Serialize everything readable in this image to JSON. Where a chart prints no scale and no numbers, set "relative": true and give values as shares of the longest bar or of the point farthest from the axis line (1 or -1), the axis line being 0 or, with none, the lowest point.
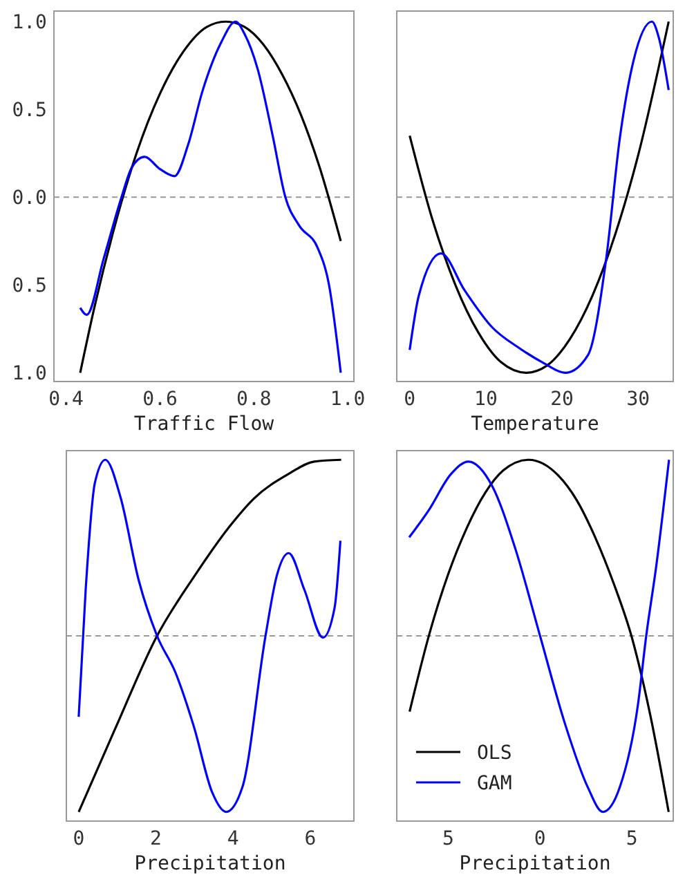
{
  "chart_data": [
    {
      "type": "line",
      "xlabel": "Traffic Flow",
      "xlim": [
        0.374,
        1.013
      ],
      "xticks": [
        {
          "value": 0.4,
          "label": "0.4"
        },
        {
          "value": 0.6,
          "label": "0.6"
        },
        {
          "value": 0.8,
          "label": "0.8"
        },
        {
          "value": 1.0,
          "label": "1.0"
        }
      ],
      "ylim": [
        -1.05,
        1.06
      ],
      "yticks": [
        {
          "value": 1,
          "label": "1.0"
        },
        {
          "value": 0.5,
          "label": "0.5"
        },
        {
          "value": 0,
          "label": "0.0"
        },
        {
          "value": -0.5,
          "label": "0.5"
        },
        {
          "value": -1,
          "label": "1.0"
        }
      ],
      "grid": false,
      "legend": false,
      "ref_lines": [
        {
          "axis": "y",
          "value": 0,
          "color": "#999999",
          "line_style": "dashed"
        }
      ],
      "series": [
        {
          "color": "#000000",
          "x": [
            0.43,
            0.46,
            0.5,
            0.55,
            0.6,
            0.65,
            0.7,
            0.74,
            0.78,
            0.82,
            0.86,
            0.9,
            0.94,
            0.985
          ],
          "values": [
            -1.0,
            -0.63,
            -0.2,
            0.25,
            0.59,
            0.83,
            0.97,
            1.0,
            0.97,
            0.87,
            0.7,
            0.47,
            0.17,
            -0.25
          ]
        },
        {
          "color": "#0000ff",
          "x": [
            0.43,
            0.444,
            0.48,
            0.518,
            0.54,
            0.567,
            0.6,
            0.631,
            0.66,
            0.69,
            0.73,
            0.761,
            0.78,
            0.808,
            0.84,
            0.867,
            0.896,
            0.936,
            0.96,
            0.985
          ],
          "values": [
            -0.63,
            -0.67,
            -0.35,
            0.0,
            0.17,
            0.23,
            0.16,
            0.12,
            0.3,
            0.6,
            0.88,
            1.0,
            0.93,
            0.73,
            0.35,
            0.0,
            -0.16,
            -0.29,
            -0.5,
            -1.0
          ]
        }
      ]
    },
    {
      "type": "line",
      "xlabel": "Temperature",
      "xlim": [
        -1.7,
        34.6
      ],
      "xticks": [
        0,
        10,
        20,
        30
      ],
      "ylim": [
        -1.05,
        1.06
      ],
      "tick_labels": "x",
      "grid": false,
      "legend": false,
      "ref_lines": [
        {
          "axis": "y",
          "value": 0,
          "color": "#999999",
          "line_style": "dashed"
        }
      ],
      "series": [
        {
          "color": "#000000",
          "x": [
            0,
            3,
            6,
            9,
            12,
            15.3,
            18,
            21,
            24,
            27,
            30,
            34
          ],
          "values": [
            0.35,
            -0.13,
            -0.5,
            -0.77,
            -0.94,
            -1.0,
            -0.96,
            -0.81,
            -0.56,
            -0.21,
            0.24,
            1.0
          ]
        },
        {
          "color": "#0000ff",
          "x": [
            0,
            1.2,
            4.1,
            7.2,
            10.8,
            14.4,
            17.4,
            20.5,
            23.4,
            25.8,
            27.6,
            29.4,
            31.8,
            32.7,
            34
          ],
          "values": [
            -0.87,
            -0.56,
            -0.32,
            -0.53,
            -0.74,
            -0.86,
            -0.94,
            -1.0,
            -0.9,
            -0.35,
            0.34,
            0.78,
            1.0,
            0.91,
            0.61
          ]
        }
      ]
    },
    {
      "type": "line",
      "xlabel": "Precipitation",
      "xlim": [
        -0.32,
        7.13
      ],
      "xticks": [
        0,
        2,
        4,
        6
      ],
      "relative": true,
      "grid": false,
      "legend": false,
      "ref_lines": [
        {
          "axis": "y",
          "value": 0,
          "color": "#999999",
          "line_style": "dashed"
        }
      ],
      "series": [
        {
          "color": "#000000",
          "x": [
            0,
            0.96,
            2.03,
            3.0,
            3.94,
            4.54,
            5.44,
            6.1,
            6.8
          ],
          "values": [
            -1.0,
            -0.52,
            0,
            0.34,
            0.63,
            0.78,
            0.92,
            0.99,
            1.0
          ]
        },
        {
          "color": "#0000ff",
          "x": [
            0,
            0.18,
            0.42,
            0.69,
            1.08,
            1.55,
            2.03,
            2.51,
            2.99,
            3.46,
            3.82,
            4.24,
            4.84,
            5.13,
            5.44,
            5.85,
            6.33,
            6.63,
            6.78
          ],
          "values": [
            -0.46,
            0.26,
            0.87,
            1.0,
            0.79,
            0.32,
            0,
            -0.21,
            -0.52,
            -0.89,
            -1.0,
            -0.86,
            0,
            0.34,
            0.47,
            0.26,
            -0.01,
            0.16,
            0.54
          ]
        }
      ]
    },
    {
      "type": "line",
      "xlabel": "Precipitation",
      "xlim": [
        -7.8,
        7.25
      ],
      "xticks": [
        {
          "value": -5,
          "label": "5"
        },
        0,
        5
      ],
      "relative": true,
      "grid": false,
      "legend": "lower left",
      "ref_lines": [
        {
          "axis": "y",
          "value": 0,
          "color": "#999999",
          "line_style": "dashed"
        }
      ],
      "series": [
        {
          "name": "OLS",
          "color": "#000000",
          "x": [
            -7.1,
            -6,
            -5,
            -4,
            -3,
            -2,
            -0.62,
            1,
            2,
            3,
            4,
            5,
            6,
            7.0
          ],
          "values": [
            -0.43,
            0.02,
            0.35,
            0.61,
            0.81,
            0.94,
            1.0,
            0.91,
            0.77,
            0.56,
            0.3,
            -0.01,
            -0.45,
            -1.0
          ]
        },
        {
          "name": "GAM",
          "color": "#0000ff",
          "x": [
            -7.12,
            -6.08,
            -4.84,
            -3.9,
            -2.6,
            -1.36,
            0,
            1.36,
            2.6,
            3.42,
            4.34,
            5.33,
            5.78,
            6.33,
            7.02
          ],
          "values": [
            0.56,
            0.71,
            0.92,
            0.99,
            0.85,
            0.5,
            0,
            -0.5,
            -0.86,
            -1.0,
            -0.86,
            -0.39,
            0,
            0.4,
            1.0
          ]
        }
      ]
    }
  ]
}
